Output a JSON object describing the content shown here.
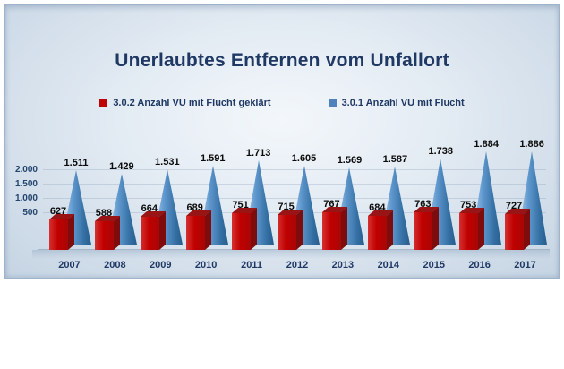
{
  "legend": [
    {
      "label": "3.0.2 Anzahl VU mit Flucht geklärt",
      "color": "#c00000"
    },
    {
      "label": "3.0.1 Anzahl VU mit Flucht",
      "color": "#4f81bd"
    }
  ],
  "y_axis": {
    "tick_labels": [
      "2.000",
      "1.500",
      "1.000",
      "500"
    ]
  },
  "chart_data": {
    "type": "bar",
    "style": "3d-columns-with-pyramids",
    "title": "Unerlaubtes Entfernen vom Unfallort",
    "categories": [
      "2007",
      "2008",
      "2009",
      "2010",
      "2011",
      "2012",
      "2013",
      "2014",
      "2015",
      "2016",
      "2017"
    ],
    "series": [
      {
        "name": "3.0.2 Anzahl VU mit Flucht geklärt",
        "shape": "bar",
        "color": "#c00000",
        "values": [
          627,
          588,
          664,
          689,
          751,
          715,
          767,
          684,
          763,
          753,
          727
        ],
        "labels": [
          "627",
          "588",
          "664",
          "689",
          "751",
          "715",
          "767",
          "684",
          "763",
          "753",
          "727"
        ]
      },
      {
        "name": "3.0.1 Anzahl VU mit Flucht",
        "shape": "pyramid",
        "color": "#4f81bd",
        "values": [
          1511,
          1429,
          1531,
          1591,
          1713,
          1605,
          1569,
          1587,
          1738,
          1884,
          1886
        ],
        "labels": [
          "1.511",
          "1.429",
          "1.531",
          "1.591",
          "1.713",
          "1.605",
          "1.569",
          "1.587",
          "1.738",
          "1.884",
          "1.886"
        ]
      }
    ],
    "xlabel": "",
    "ylabel": "",
    "ylim": [
      0,
      2000
    ],
    "y_ticks": [
      500,
      1000,
      1500,
      2000
    ],
    "grid": "faint-horizontal",
    "legend_position": "top"
  }
}
